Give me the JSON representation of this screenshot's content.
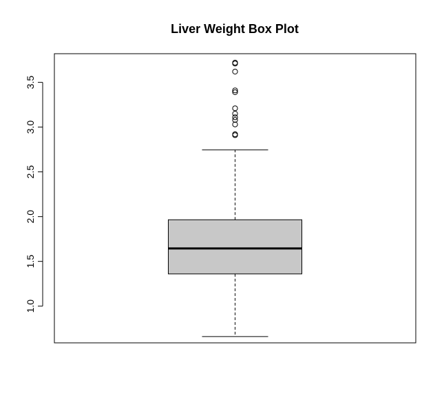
{
  "chart_data": {
    "type": "box",
    "title": "Liver Weight Box Plot",
    "xlabel": "",
    "ylabel": "",
    "ylim": [
      0.59,
      3.82
    ],
    "yticks": [
      1.0,
      1.5,
      2.0,
      2.5,
      3.0,
      3.5
    ],
    "ytick_labels": [
      "1.0",
      "1.5",
      "2.0",
      "2.5",
      "3.0",
      "3.5"
    ],
    "box": {
      "lower_whisker": 0.66,
      "q1": 1.36,
      "median": 1.645,
      "q3": 1.965,
      "upper_whisker": 2.745
    },
    "outliers": [
      2.91,
      2.92,
      3.03,
      3.08,
      3.11,
      3.15,
      3.21,
      3.39,
      3.41,
      3.62,
      3.71,
      3.72
    ],
    "box_fill": "#c8c8c8",
    "line_color": "#000000",
    "grid": false
  }
}
